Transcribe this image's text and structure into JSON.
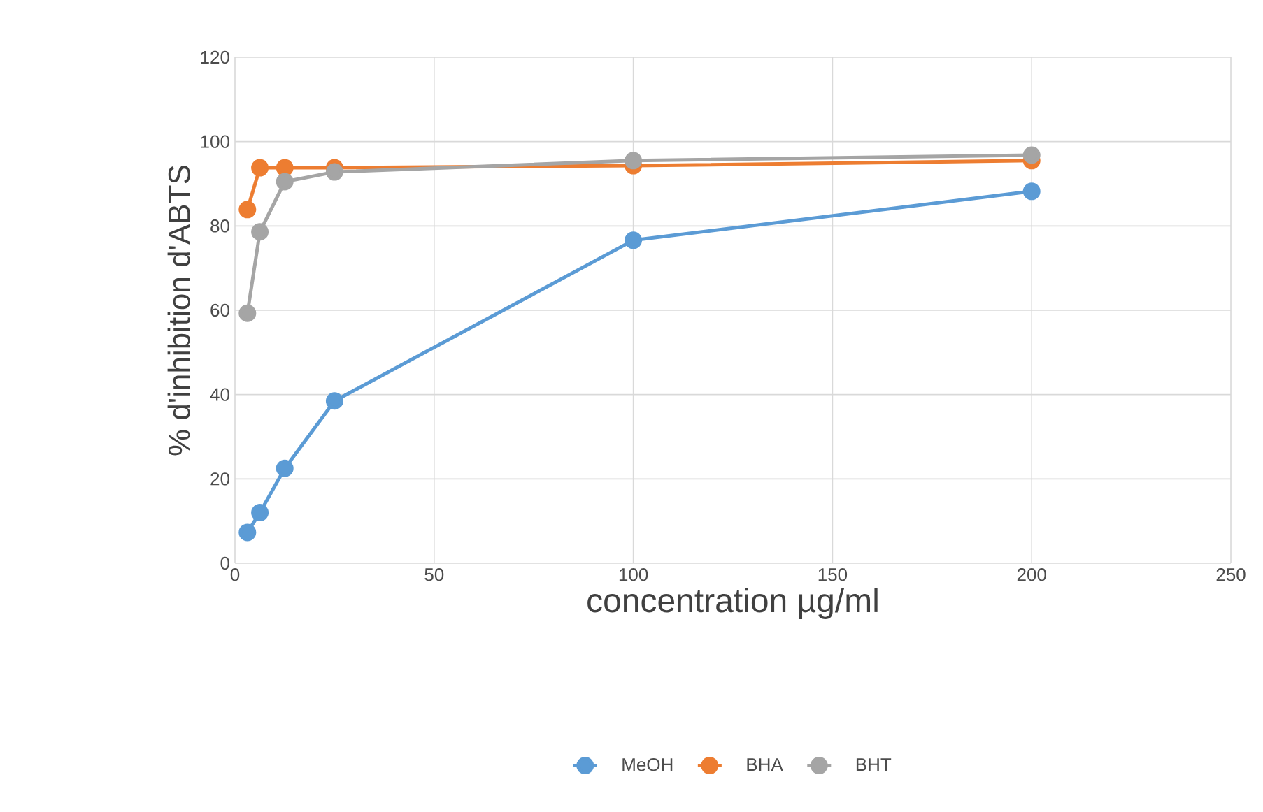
{
  "chart_data": {
    "type": "line",
    "xlabel": "concentration µg/ml",
    "ylabel": "% d'inhibition d'ABTS",
    "xlim": [
      0,
      250
    ],
    "xticks": [
      0,
      50,
      100,
      150,
      200,
      250
    ],
    "ylim": [
      0,
      120
    ],
    "yticks": [
      0,
      20,
      40,
      60,
      80,
      100,
      120
    ],
    "grid": true,
    "legend": "bottom",
    "marker": "circle",
    "line_style": "solid",
    "x": [
      3.125,
      6.25,
      12.5,
      25,
      100,
      200
    ],
    "series": [
      {
        "name": "MeOH",
        "color": "#5b9bd5",
        "values": [
          7.3,
          12,
          22.5,
          38.5,
          76.6,
          88.2
        ]
      },
      {
        "name": "BHA",
        "color": "#ed7d31",
        "values": [
          83.9,
          93.8,
          93.8,
          93.8,
          94.3,
          95.5
        ]
      },
      {
        "name": "BHT",
        "color": "#a5a5a5",
        "values": [
          59.3,
          78.6,
          90.5,
          92.8,
          95.5,
          96.8
        ]
      }
    ]
  }
}
